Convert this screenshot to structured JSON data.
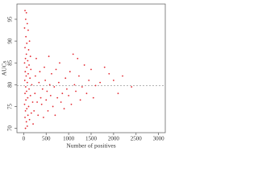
{
  "chart_data": {
    "type": "scatter",
    "x_label": "Number of positives",
    "y_label": "AUCs",
    "color": "#e3262f",
    "reference_line": 79.8,
    "xlim": [
      -150,
      3150
    ],
    "xticks": [
      0,
      500,
      1000,
      1500,
      2000,
      2500,
      3000
    ],
    "ylim": [
      69,
      98.5
    ],
    "yticks": [
      70,
      75,
      80,
      85,
      90,
      95
    ],
    "x": [
      30,
      60,
      45,
      80,
      20,
      100,
      50,
      130,
      70,
      30,
      110,
      60,
      150,
      40,
      90,
      20,
      120,
      70,
      160,
      35,
      100,
      55,
      140,
      25,
      80,
      180,
      45,
      120,
      65,
      30,
      150,
      90,
      50,
      200,
      20,
      110,
      70,
      40,
      170,
      95,
      30,
      130,
      60,
      80,
      40,
      210,
      230,
      250,
      260,
      280,
      300,
      320,
      340,
      360,
      380,
      400,
      420,
      440,
      460,
      480,
      500,
      520,
      540,
      560,
      580,
      600,
      620,
      650,
      680,
      700,
      720,
      750,
      780,
      800,
      830,
      860,
      900,
      930,
      960,
      1000,
      1030,
      1060,
      1100,
      1130,
      1160,
      1200,
      1230,
      1260,
      1300,
      1350,
      1400,
      1450,
      1500,
      1550,
      1600,
      1700,
      1800,
      1900,
      2000,
      2100,
      2200,
      2400
    ],
    "y": [
      97,
      96.5,
      95,
      94,
      93,
      92.5,
      91,
      90,
      89.5,
      88.5,
      88,
      87,
      86.5,
      86,
      85.5,
      85,
      84.5,
      84,
      83.5,
      83,
      82.5,
      82,
      81.5,
      81,
      80.5,
      80,
      79.5,
      79,
      78.5,
      78,
      77.5,
      77,
      76.5,
      76,
      75.5,
      75,
      74.5,
      74,
      73.5,
      73,
      72.5,
      72,
      71.5,
      70.5,
      70,
      71,
      74,
      78,
      82,
      86,
      76,
      73,
      80.5,
      83,
      77,
      75.5,
      79,
      72.5,
      84,
      81,
      76.5,
      78.5,
      74,
      86.5,
      80,
      77.5,
      82.5,
      75,
      79.5,
      73,
      83.5,
      77,
      80.5,
      85,
      76,
      78,
      74.5,
      81.5,
      79,
      77.5,
      83,
      75.5,
      87,
      80,
      78.5,
      86,
      82,
      76.5,
      79.5,
      84.5,
      78,
      81,
      83.5,
      77,
      79.8,
      80.5,
      84,
      82.5,
      81,
      78,
      82,
      79.5
    ]
  }
}
